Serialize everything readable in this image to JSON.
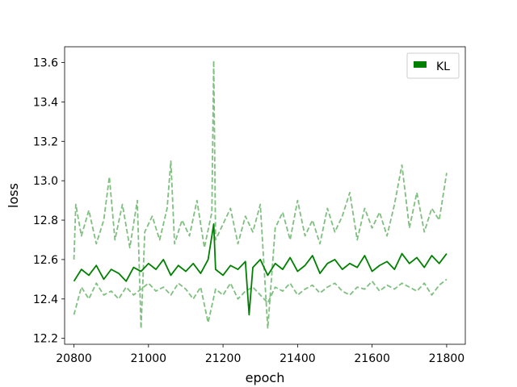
{
  "chart_data": {
    "type": "line",
    "xlabel": "epoch",
    "ylabel": "loss",
    "xlim": [
      20775,
      21850
    ],
    "ylim": [
      12.17,
      13.68
    ],
    "xticks": [
      20800,
      21000,
      21200,
      21400,
      21600,
      21800
    ],
    "xtick_labels": [
      "20800",
      "21000",
      "21200",
      "21400",
      "21600",
      "21800"
    ],
    "yticks": [
      12.2,
      12.4,
      12.6,
      12.8,
      13.0,
      13.2,
      13.4,
      13.6
    ],
    "ytick_labels": [
      "12.2",
      "12.4",
      "12.6",
      "12.8",
      "13.0",
      "13.2",
      "13.4",
      "13.6"
    ],
    "grid": false,
    "legend": {
      "placement": "top-right",
      "entries": [
        "KL"
      ]
    },
    "colors": {
      "main": "#008000",
      "band": "#7fbf7f"
    },
    "series": [
      {
        "name": "KL",
        "style": "solid",
        "x": [
          20800,
          20820,
          20840,
          20860,
          20880,
          20900,
          20920,
          20940,
          20960,
          20980,
          21000,
          21020,
          21040,
          21060,
          21080,
          21100,
          21120,
          21140,
          21160,
          21175,
          21180,
          21200,
          21220,
          21240,
          21260,
          21270,
          21280,
          21300,
          21320,
          21340,
          21360,
          21380,
          21400,
          21420,
          21440,
          21460,
          21480,
          21500,
          21520,
          21540,
          21560,
          21580,
          21600,
          21620,
          21640,
          21660,
          21680,
          21700,
          21720,
          21740,
          21760,
          21780,
          21800
        ],
        "values": [
          12.49,
          12.55,
          12.52,
          12.57,
          12.5,
          12.55,
          12.53,
          12.49,
          12.56,
          12.54,
          12.58,
          12.55,
          12.6,
          12.52,
          12.57,
          12.54,
          12.58,
          12.53,
          12.6,
          12.78,
          12.55,
          12.52,
          12.57,
          12.55,
          12.59,
          12.32,
          12.56,
          12.6,
          12.52,
          12.58,
          12.55,
          12.61,
          12.54,
          12.57,
          12.62,
          12.53,
          12.58,
          12.6,
          12.55,
          12.58,
          12.56,
          12.62,
          12.54,
          12.57,
          12.59,
          12.55,
          12.63,
          12.58,
          12.61,
          12.56,
          12.62,
          12.58,
          12.63
        ]
      },
      {
        "name": "",
        "style": "dashed",
        "x": [
          20800,
          20805,
          20820,
          20840,
          20860,
          20880,
          20895,
          20910,
          20930,
          20950,
          20970,
          20980,
          20990,
          21010,
          21030,
          21050,
          21060,
          21070,
          21090,
          21110,
          21130,
          21150,
          21170,
          21175,
          21180,
          21200,
          21220,
          21240,
          21260,
          21280,
          21300,
          21320,
          21340,
          21360,
          21380,
          21400,
          21420,
          21440,
          21460,
          21480,
          21500,
          21520,
          21540,
          21560,
          21580,
          21600,
          21620,
          21640,
          21660,
          21680,
          21700,
          21720,
          21740,
          21760,
          21780,
          21800
        ],
        "values": [
          12.6,
          12.88,
          12.72,
          12.85,
          12.68,
          12.8,
          13.02,
          12.7,
          12.88,
          12.66,
          12.9,
          12.25,
          12.74,
          12.82,
          12.7,
          12.86,
          13.1,
          12.68,
          12.8,
          12.72,
          12.9,
          12.66,
          12.84,
          13.61,
          12.7,
          12.78,
          12.86,
          12.68,
          12.82,
          12.74,
          12.88,
          12.25,
          12.76,
          12.84,
          12.7,
          12.9,
          12.72,
          12.8,
          12.68,
          12.86,
          12.74,
          12.82,
          12.94,
          12.7,
          12.86,
          12.76,
          12.84,
          12.72,
          12.88,
          13.08,
          12.76,
          12.94,
          12.74,
          12.86,
          12.8,
          13.04
        ]
      },
      {
        "name": "",
        "style": "dashed",
        "x": [
          20800,
          20820,
          20840,
          20860,
          20880,
          20900,
          20920,
          20940,
          20960,
          20980,
          21000,
          21020,
          21040,
          21060,
          21080,
          21100,
          21120,
          21140,
          21160,
          21180,
          21200,
          21220,
          21240,
          21260,
          21280,
          21300,
          21320,
          21340,
          21360,
          21380,
          21400,
          21420,
          21440,
          21460,
          21480,
          21500,
          21520,
          21540,
          21560,
          21580,
          21600,
          21620,
          21640,
          21660,
          21680,
          21700,
          21720,
          21740,
          21760,
          21780,
          21800
        ],
        "values": [
          12.32,
          12.46,
          12.4,
          12.48,
          12.42,
          12.44,
          12.4,
          12.46,
          12.42,
          12.45,
          12.48,
          12.44,
          12.46,
          12.42,
          12.48,
          12.45,
          12.4,
          12.46,
          12.28,
          12.45,
          12.42,
          12.48,
          12.4,
          12.44,
          12.46,
          12.42,
          12.38,
          12.46,
          12.44,
          12.48,
          12.42,
          12.45,
          12.47,
          12.43,
          12.46,
          12.48,
          12.44,
          12.42,
          12.46,
          12.45,
          12.49,
          12.44,
          12.47,
          12.45,
          12.48,
          12.46,
          12.44,
          12.48,
          12.42,
          12.47,
          12.5
        ]
      }
    ]
  }
}
